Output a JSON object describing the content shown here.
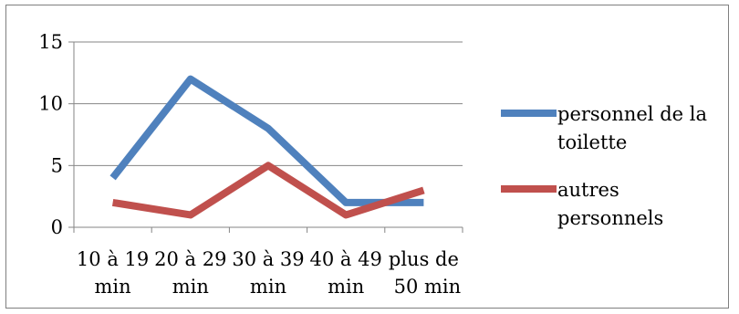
{
  "chart_data": {
    "type": "line",
    "categories": [
      [
        "10 à 19",
        "min"
      ],
      [
        "20 à 29",
        "min"
      ],
      [
        "30 à 39",
        "min"
      ],
      [
        "40 à 49",
        "min"
      ],
      [
        "plus de",
        "50 min"
      ]
    ],
    "series": [
      {
        "name": [
          "personnel de la",
          "toilette"
        ],
        "values": [
          4,
          12,
          8,
          2,
          2
        ],
        "color": "#4f81bd"
      },
      {
        "name": [
          "autres",
          "personnels"
        ],
        "values": [
          2,
          1,
          5,
          1,
          3
        ],
        "color": "#c0504d"
      }
    ],
    "yticks": [
      0,
      5,
      10,
      15
    ],
    "ylim": [
      0,
      15
    ],
    "grid": true,
    "legend": "right"
  }
}
